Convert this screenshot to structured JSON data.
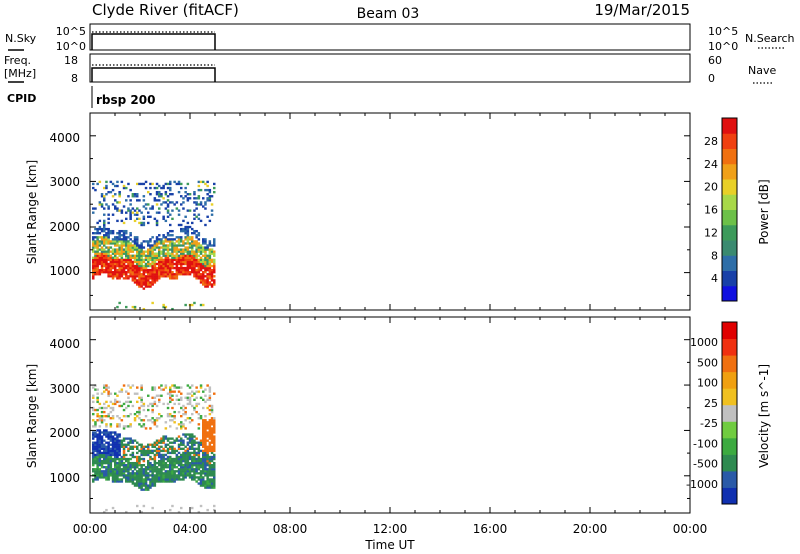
{
  "header": {
    "station": "Clyde River (fitACF)",
    "beam": "Beam 03",
    "date": "19/Mar/2015"
  },
  "nsky_panel": {
    "left_label": "N.Sky",
    "right_label": "N.Search",
    "left_ticks": [
      "10^5",
      "10^0"
    ],
    "right_ticks": [
      "10^5",
      "10^0"
    ]
  },
  "freq_panel": {
    "left_label_1": "Freq.",
    "left_label_2": "[MHz]",
    "right_label": "Nave",
    "left_ticks": [
      "18",
      "8"
    ],
    "right_ticks": [
      "60",
      "0"
    ]
  },
  "cpid": {
    "label": "CPID",
    "value": "rbsp 200"
  },
  "x_axis": {
    "label": "Time UT",
    "ticks": [
      "00:00",
      "04:00",
      "08:00",
      "12:00",
      "16:00",
      "20:00",
      "00:00"
    ],
    "range_hours": [
      0,
      24
    ],
    "data_end_hours": 5.0
  },
  "chart_data": [
    {
      "type": "heatmap",
      "name": "power",
      "ylabel": "Slant Range [km]",
      "yticks": [
        "1000",
        "2000",
        "3000",
        "4000"
      ],
      "ylim": [
        180,
        4500
      ],
      "xlim": [
        0,
        24
      ],
      "colorbar": {
        "label": "Power [dB]",
        "ticks": [
          "4",
          "8",
          "12",
          "16",
          "20",
          "24",
          "28"
        ],
        "colors": [
          "#1010e0",
          "#1840a8",
          "#2e6ea8",
          "#3a8a70",
          "#3c9a5a",
          "#6cc048",
          "#a8d848",
          "#e8d028",
          "#f0a018",
          "#f07010",
          "#f04010",
          "#e01010"
        ]
      },
      "bands": [
        {
          "range_km": [
            800,
            1600
          ],
          "x_hours": [
            0.1,
            5.0
          ],
          "level": "high"
        },
        {
          "range_km": [
            1200,
            1900
          ],
          "x_hours": [
            0.1,
            5.0
          ],
          "level": "mid"
        },
        {
          "range_km": [
            1900,
            3000
          ],
          "x_hours": [
            0.1,
            5.0
          ],
          "level": "low_sparse"
        }
      ]
    },
    {
      "type": "heatmap",
      "name": "velocity",
      "ylabel": "Slant Range [km]",
      "yticks": [
        "1000",
        "2000",
        "3000",
        "4000"
      ],
      "ylim": [
        180,
        4500
      ],
      "xlim": [
        0,
        24
      ],
      "colorbar": {
        "label": "Velocity [m s^-1]",
        "ticks": [
          "1000",
          "500",
          "100",
          "25",
          "-25",
          "-100",
          "-500",
          "-1000"
        ],
        "colors": [
          "#1030b0",
          "#2a5aa8",
          "#2e8a50",
          "#3caa40",
          "#70cc40",
          "#c0c0c0",
          "#f0c020",
          "#f0a010",
          "#f07010",
          "#f03010",
          "#e00000"
        ]
      },
      "bands": [
        {
          "range_km": [
            800,
            1400
          ],
          "x_hours": [
            0.1,
            5.0
          ],
          "level": "green"
        },
        {
          "range_km": [
            1400,
            2000
          ],
          "x_hours": [
            0.1,
            1.2
          ],
          "level": "blue"
        },
        {
          "range_km": [
            1500,
            2200
          ],
          "x_hours": [
            4.5,
            5.0
          ],
          "level": "orange"
        },
        {
          "range_km": [
            2000,
            3000
          ],
          "x_hours": [
            0.1,
            5.0
          ],
          "level": "grey_sparse"
        }
      ]
    }
  ]
}
